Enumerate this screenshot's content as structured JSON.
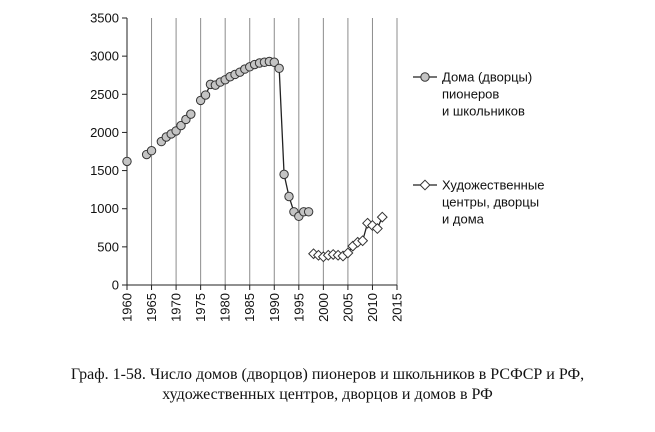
{
  "chart_data": {
    "type": "line",
    "xlim": [
      1960,
      2015
    ],
    "ylim": [
      0,
      3500
    ],
    "x_ticks": [
      1960,
      1965,
      1970,
      1975,
      1980,
      1985,
      1990,
      1995,
      2000,
      2005,
      2010,
      2015
    ],
    "y_ticks": [
      0,
      500,
      1000,
      1500,
      2000,
      2500,
      3000,
      3500
    ],
    "grid": "vertical",
    "legend_position": "right",
    "series": [
      {
        "name": "Дома (дворцы) пионеров и школьников",
        "legend_lines": [
          "Дома (дворцы)",
          "пионеров",
          "и школьников"
        ],
        "marker": "circle",
        "segments": [
          [
            [
              1960,
              1620
            ]
          ],
          [
            [
              1964,
              1710
            ],
            [
              1965,
              1760
            ]
          ],
          [
            [
              1967,
              1880
            ],
            [
              1968,
              1940
            ],
            [
              1969,
              1980
            ],
            [
              1970,
              2020
            ],
            [
              1971,
              2090
            ],
            [
              1972,
              2170
            ],
            [
              1973,
              2240
            ]
          ],
          [
            [
              1975,
              2420
            ],
            [
              1976,
              2490
            ],
            [
              1977,
              2630
            ],
            [
              1978,
              2620
            ],
            [
              1979,
              2660
            ],
            [
              1980,
              2690
            ],
            [
              1981,
              2730
            ],
            [
              1982,
              2760
            ],
            [
              1983,
              2790
            ],
            [
              1984,
              2830
            ],
            [
              1985,
              2860
            ],
            [
              1986,
              2890
            ],
            [
              1987,
              2910
            ],
            [
              1988,
              2920
            ],
            [
              1989,
              2930
            ],
            [
              1990,
              2920
            ],
            [
              1991,
              2840
            ],
            [
              1992,
              1450
            ],
            [
              1993,
              1160
            ],
            [
              1994,
              960
            ],
            [
              1995,
              900
            ],
            [
              1996,
              960
            ],
            [
              1997,
              960
            ]
          ]
        ]
      },
      {
        "name": "Художественные центры, дворцы и дома",
        "legend_lines": [
          "Художественные",
          "центры, дворцы",
          "и дома"
        ],
        "marker": "diamond",
        "segments": [
          [
            [
              1998,
              410
            ],
            [
              1999,
              390
            ],
            [
              2000,
              370
            ],
            [
              2001,
              390
            ],
            [
              2002,
              400
            ],
            [
              2003,
              390
            ],
            [
              2004,
              380
            ],
            [
              2005,
              420
            ],
            [
              2006,
              510
            ],
            [
              2007,
              560
            ],
            [
              2008,
              580
            ],
            [
              2009,
              810
            ],
            [
              2010,
              780
            ],
            [
              2011,
              740
            ],
            [
              2012,
              890
            ]
          ]
        ]
      }
    ]
  },
  "caption": {
    "line1": "Граф. 1-58. Число домов (дворцов) пионеров и школьников в РСФСР и РФ,",
    "line2": "художественных центров, дворцов и домов в РФ"
  }
}
